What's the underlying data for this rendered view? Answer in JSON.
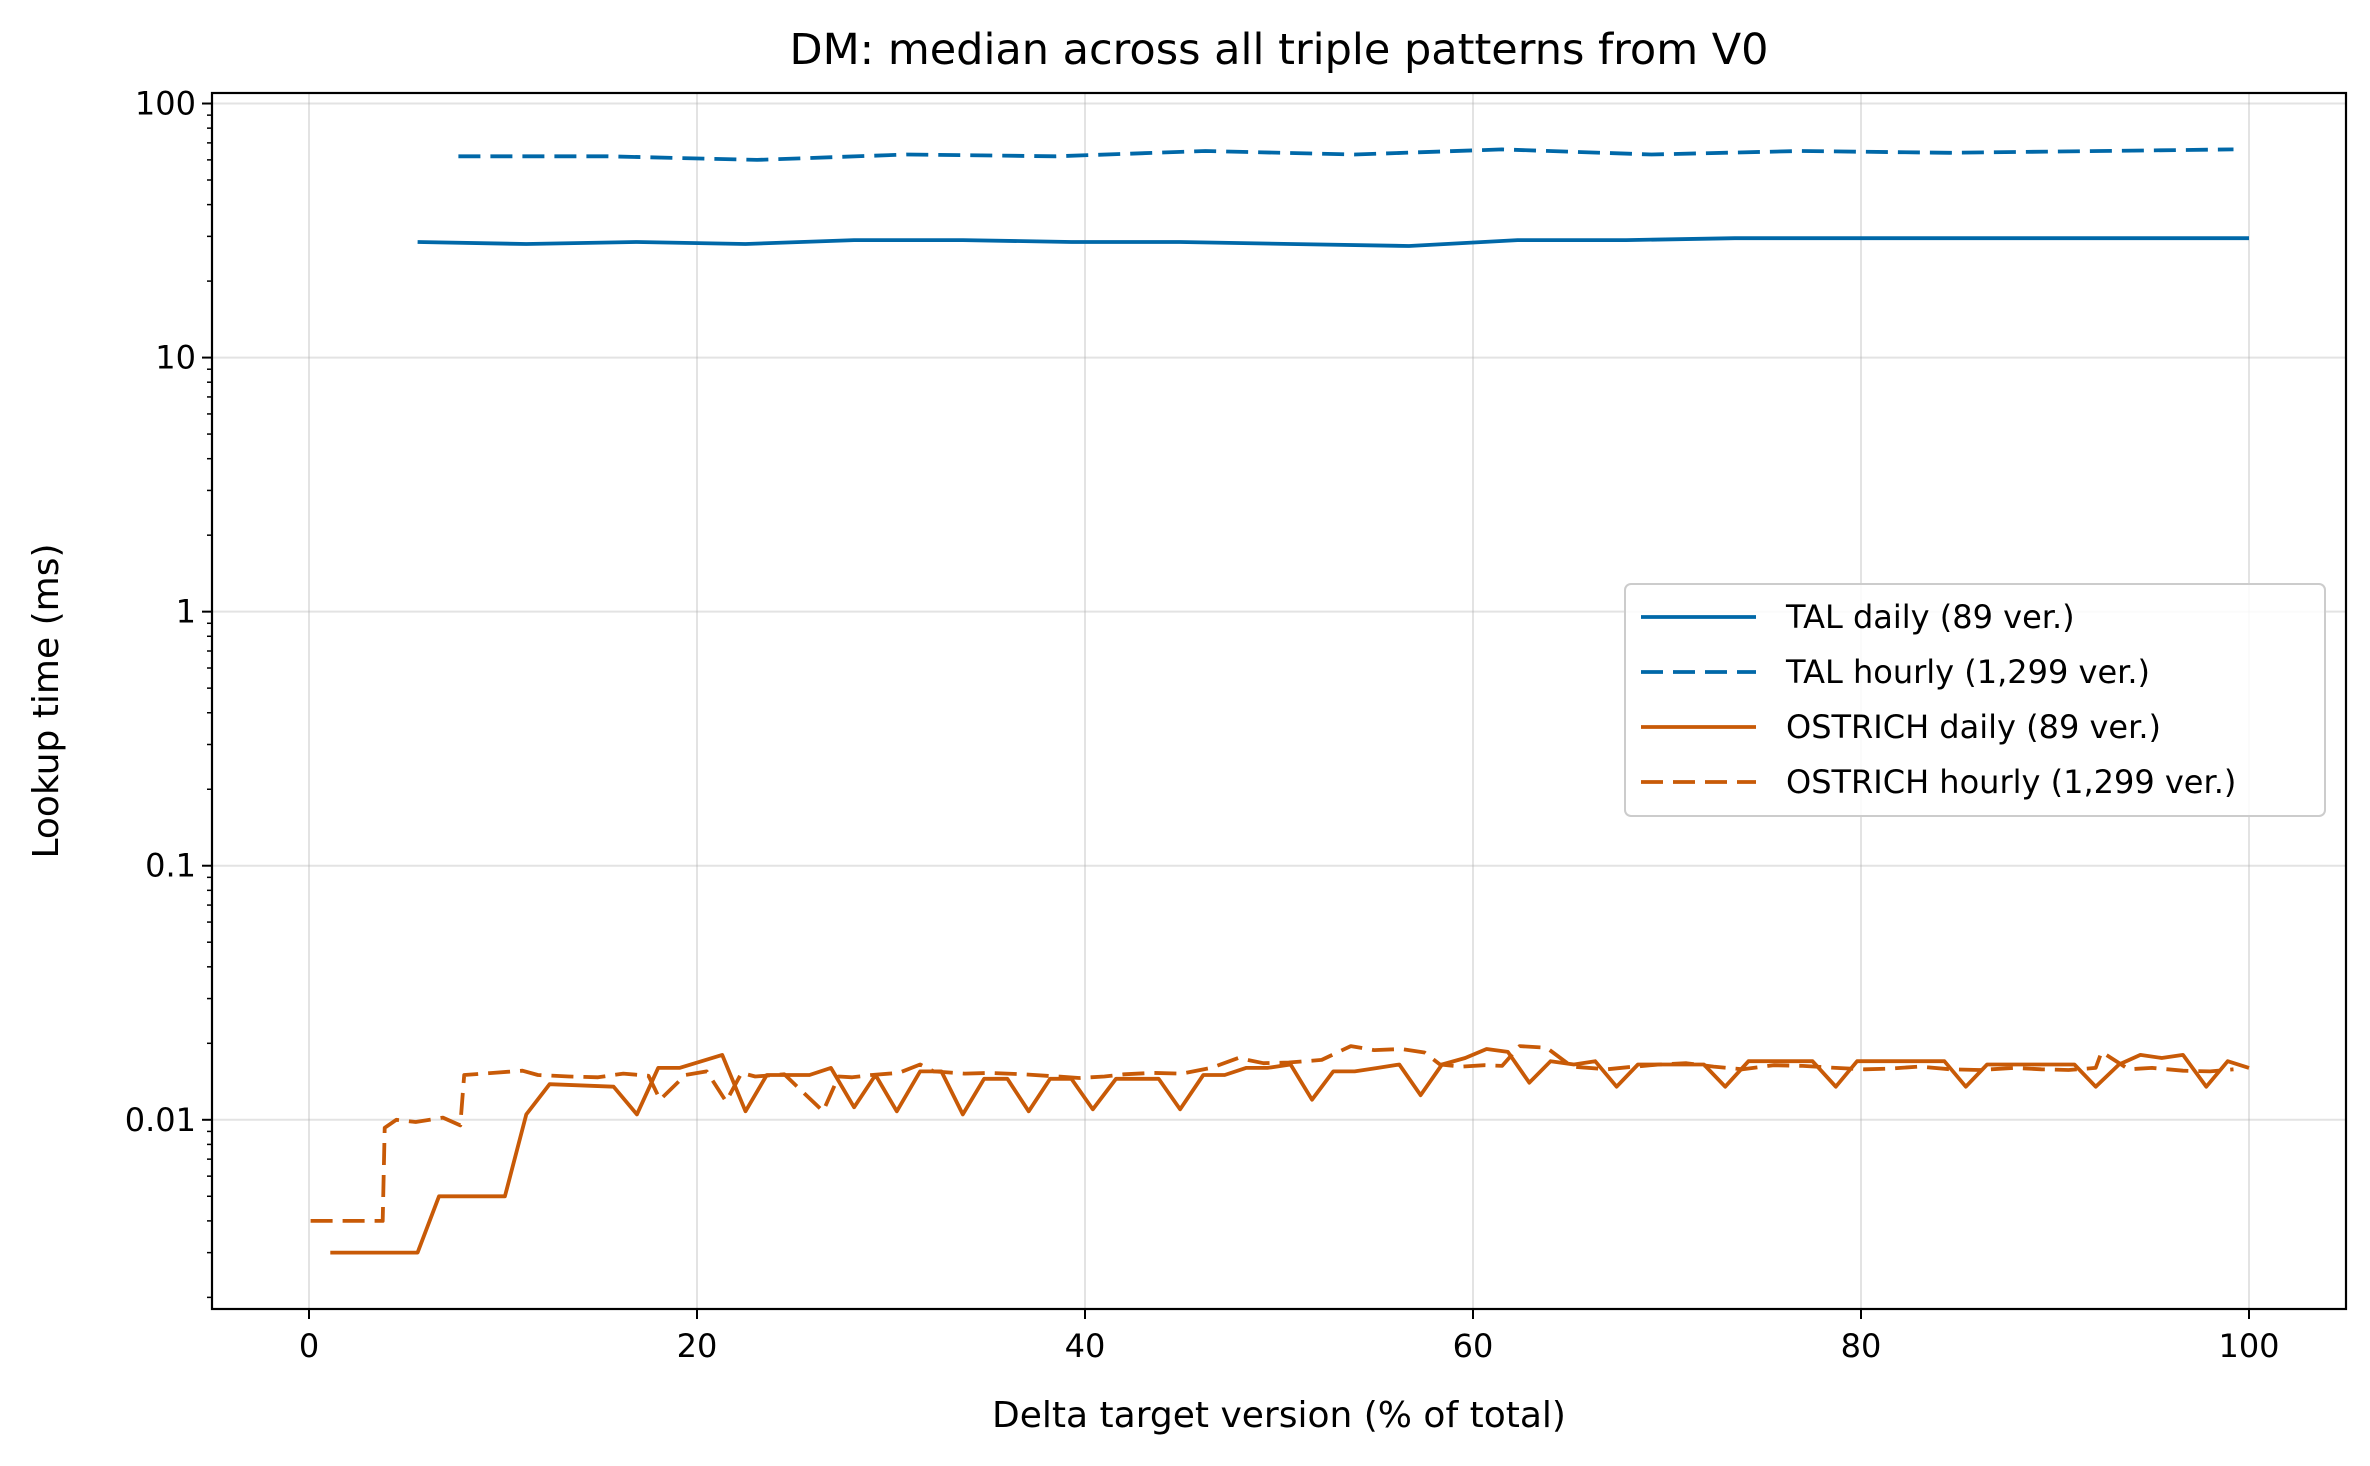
{
  "chart_data": {
    "type": "line",
    "title": "DM: median across all triple patterns from V0",
    "xlabel": "Delta target version (% of total)",
    "ylabel": "Lookup time (ms)",
    "xlim": [
      -5,
      105
    ],
    "ylim": [
      0.0018,
      110
    ],
    "yscale": "log",
    "grid": true,
    "legend_position": "center-right",
    "x_ticks": [
      {
        "value": 0,
        "label": "0"
      },
      {
        "value": 20,
        "label": "20"
      },
      {
        "value": 40,
        "label": "40"
      },
      {
        "value": 60,
        "label": "60"
      },
      {
        "value": 80,
        "label": "80"
      },
      {
        "value": 100,
        "label": "100"
      }
    ],
    "y_ticks": [
      {
        "value": 0.01,
        "label": "0.01"
      },
      {
        "value": 0.1,
        "label": "0.1"
      },
      {
        "value": 1,
        "label": "1"
      },
      {
        "value": 10,
        "label": "10"
      },
      {
        "value": 100,
        "label": "100"
      }
    ],
    "series": [
      {
        "name": "TAL daily (89 ver.)",
        "color": "#0068a8",
        "style": "solid",
        "x": [
          5.6,
          11.2,
          16.9,
          22.5,
          28.1,
          33.7,
          39.3,
          44.9,
          50.6,
          56.7,
          62.3,
          67.9,
          73.5,
          79.2,
          84.8,
          90.4,
          96.0,
          100
        ],
        "y": [
          28.5,
          28.0,
          28.5,
          28.0,
          29.0,
          29.0,
          28.5,
          28.5,
          28.0,
          27.5,
          29.0,
          29.0,
          29.5,
          29.5,
          29.5,
          29.5,
          29.5,
          29.5
        ]
      },
      {
        "name": "TAL hourly (1,299 ver.)",
        "color": "#0068a8",
        "style": "dashed",
        "x": [
          7.7,
          15.4,
          23.1,
          30.8,
          38.5,
          46.2,
          53.9,
          61.5,
          69.2,
          76.9,
          84.6,
          92.3,
          99.2
        ],
        "y": [
          62.0,
          62.0,
          60.0,
          63.0,
          62.0,
          65.0,
          63.0,
          66.0,
          63.0,
          65.0,
          64.0,
          65.0,
          66.0
        ]
      },
      {
        "name": "OSTRICH daily (89 ver.)",
        "color": "#c85a07",
        "style": "solid",
        "x": [
          1.1,
          5.6,
          6.7,
          10.1,
          11.2,
          12.4,
          15.7,
          16.9,
          18.0,
          19.1,
          21.3,
          22.5,
          23.6,
          24.7,
          25.8,
          26.9,
          28.1,
          29.2,
          30.3,
          31.5,
          32.6,
          33.7,
          34.8,
          36.0,
          37.1,
          38.2,
          39.3,
          40.4,
          41.6,
          42.7,
          43.8,
          44.9,
          46.1,
          47.2,
          48.3,
          49.4,
          50.6,
          51.7,
          52.8,
          53.9,
          55.1,
          56.2,
          57.3,
          58.4,
          59.6,
          60.7,
          61.8,
          62.9,
          64.0,
          65.2,
          66.3,
          67.4,
          68.5,
          69.7,
          70.8,
          71.9,
          73.0,
          74.2,
          75.3,
          76.4,
          77.5,
          78.7,
          79.8,
          80.9,
          82.0,
          83.1,
          84.3,
          85.4,
          86.5,
          87.6,
          88.8,
          89.9,
          91.0,
          92.1,
          93.3,
          94.4,
          95.5,
          96.6,
          97.8,
          98.9,
          100
        ],
        "y": [
          0.003,
          0.003,
          0.005,
          0.005,
          0.0105,
          0.0138,
          0.0135,
          0.0105,
          0.016,
          0.016,
          0.018,
          0.0108,
          0.015,
          0.015,
          0.015,
          0.016,
          0.0112,
          0.015,
          0.0108,
          0.0155,
          0.0155,
          0.0105,
          0.0145,
          0.0145,
          0.0108,
          0.0145,
          0.0145,
          0.011,
          0.0145,
          0.0145,
          0.0145,
          0.011,
          0.015,
          0.015,
          0.016,
          0.016,
          0.0165,
          0.012,
          0.0155,
          0.0155,
          0.016,
          0.0165,
          0.0125,
          0.0165,
          0.0175,
          0.019,
          0.0185,
          0.014,
          0.017,
          0.0165,
          0.017,
          0.0135,
          0.0165,
          0.0165,
          0.0165,
          0.0165,
          0.0135,
          0.017,
          0.017,
          0.017,
          0.017,
          0.0135,
          0.017,
          0.017,
          0.017,
          0.017,
          0.017,
          0.0135,
          0.0165,
          0.0165,
          0.0165,
          0.0165,
          0.0165,
          0.0135,
          0.0165,
          0.018,
          0.0175,
          0.018,
          0.0135,
          0.017,
          0.016
        ]
      },
      {
        "name": "OSTRICH hourly (1,299 ver.)",
        "color": "#c85a07",
        "style": "dashed",
        "x": [
          0.08,
          2.5,
          3.8,
          3.9,
          4.5,
          5.5,
          6.9,
          7.8,
          8.0,
          9.5,
          11.0,
          11.8,
          13.4,
          14.9,
          16.2,
          17.5,
          18.1,
          19.4,
          20.5,
          21.5,
          22.3,
          23.0,
          24.5,
          26.5,
          27.3,
          28.0,
          29.0,
          30.4,
          31.5,
          32.2,
          33.8,
          35.1,
          36.8,
          38.6,
          39.7,
          41.0,
          42.0,
          43.5,
          45.0,
          46.5,
          47.9,
          49.2,
          50.5,
          52.2,
          53.7,
          54.9,
          56.3,
          57.5,
          58.3,
          59.4,
          60.6,
          61.5,
          62.4,
          63.8,
          65.1,
          66.9,
          68.0,
          69.6,
          71.0,
          72.4,
          73.9,
          75.5,
          77.0,
          78.7,
          80.2,
          81.5,
          83.0,
          84.6,
          86.1,
          87.9,
          89.3,
          90.7,
          92.1,
          92.4,
          93.8,
          95.0,
          96.6,
          98.0,
          99.2
        ],
        "y": [
          0.004,
          0.004,
          0.004,
          0.0093,
          0.01,
          0.0098,
          0.0102,
          0.0095,
          0.015,
          0.0153,
          0.0156,
          0.015,
          0.0148,
          0.0147,
          0.0152,
          0.0149,
          0.012,
          0.015,
          0.0155,
          0.0118,
          0.0153,
          0.0148,
          0.0151,
          0.0108,
          0.0148,
          0.0147,
          0.015,
          0.0153,
          0.0165,
          0.0155,
          0.0152,
          0.0153,
          0.0151,
          0.0148,
          0.0146,
          0.0148,
          0.0151,
          0.0153,
          0.0152,
          0.016,
          0.0175,
          0.0167,
          0.0168,
          0.0172,
          0.0195,
          0.0188,
          0.019,
          0.0184,
          0.0165,
          0.0162,
          0.0164,
          0.0163,
          0.0195,
          0.0192,
          0.0162,
          0.0158,
          0.0161,
          0.0165,
          0.0167,
          0.0162,
          0.0158,
          0.0164,
          0.0163,
          0.016,
          0.0158,
          0.0159,
          0.0162,
          0.0158,
          0.0157,
          0.016,
          0.0158,
          0.0157,
          0.016,
          0.0185,
          0.0158,
          0.016,
          0.0156,
          0.0155,
          0.0158
        ]
      }
    ]
  }
}
